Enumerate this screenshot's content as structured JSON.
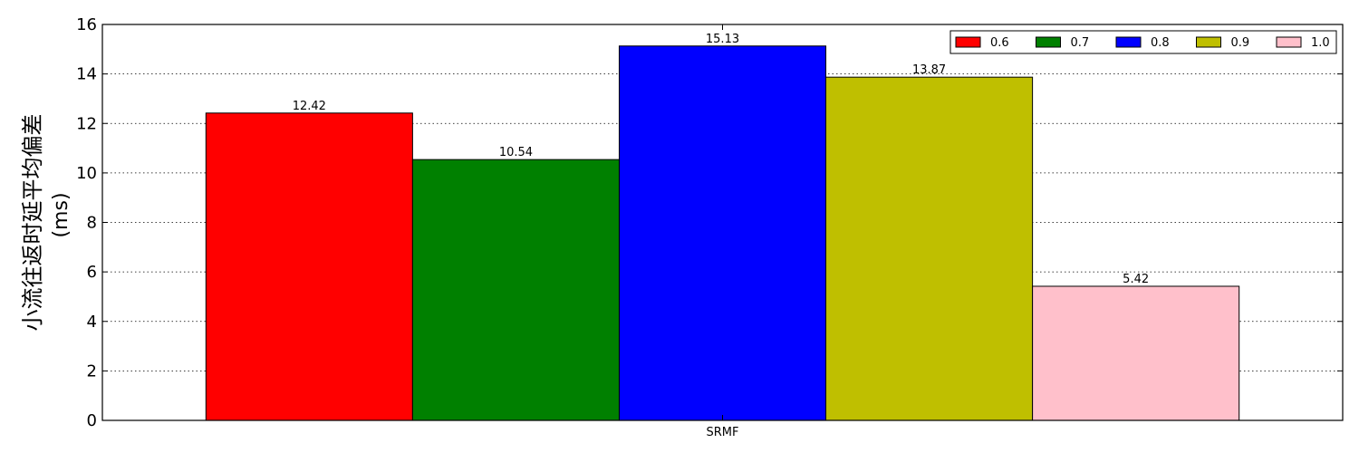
{
  "chart_data": {
    "type": "bar",
    "categories": [
      "SRMF"
    ],
    "series": [
      {
        "name": "0.6",
        "values": [
          12.42
        ],
        "color": "#ff0000"
      },
      {
        "name": "0.7",
        "values": [
          10.54
        ],
        "color": "#008000"
      },
      {
        "name": "0.8",
        "values": [
          15.13
        ],
        "color": "#0000ff"
      },
      {
        "name": "0.9",
        "values": [
          13.87
        ],
        "color": "#bfbf00"
      },
      {
        "name": "1.0",
        "values": [
          5.42
        ],
        "color": "#ffc0cb"
      }
    ],
    "data_labels": [
      "12.42",
      "10.54",
      "15.13",
      "13.87",
      "5.42"
    ],
    "title": "",
    "xlabel": "",
    "ylabel": "小流往返时延平均偏差",
    "ylabel_unit": "(ms)",
    "ylim": [
      0,
      16
    ],
    "yticks": [
      0,
      2,
      4,
      6,
      8,
      10,
      12,
      14,
      16
    ],
    "grid": "horizontal-dotted",
    "legend_position": "top-right"
  }
}
